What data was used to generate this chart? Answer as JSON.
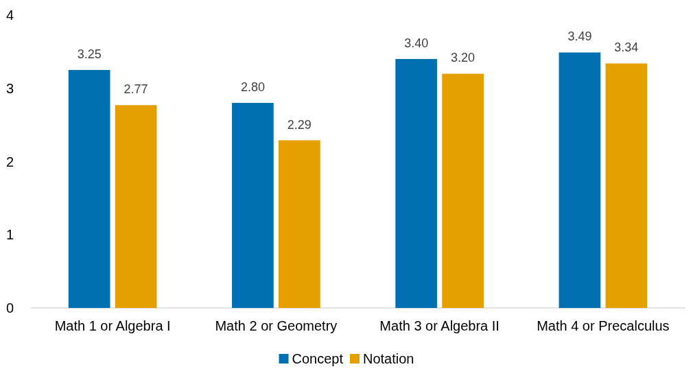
{
  "chart_data": {
    "type": "bar",
    "categories": [
      "Math 1 or Algebra I",
      "Math 2 or Geometry",
      "Math 3 or Algebra II",
      "Math 4 or Precalculus"
    ],
    "series": [
      {
        "name": "Concept",
        "color": "#0070b0",
        "values": [
          3.25,
          2.8,
          3.4,
          3.49
        ],
        "value_labels": [
          "3.25",
          "2.80",
          "3.40",
          "3.49"
        ]
      },
      {
        "name": "Notation",
        "color": "#e5a000",
        "values": [
          2.77,
          2.29,
          3.2,
          3.34
        ],
        "value_labels": [
          "2.77",
          "2.29",
          "3.20",
          "3.34"
        ]
      }
    ],
    "ylim": [
      0,
      4
    ],
    "yticks": [
      0,
      1,
      2,
      3,
      4
    ],
    "grid": false,
    "legend": "bottom"
  }
}
